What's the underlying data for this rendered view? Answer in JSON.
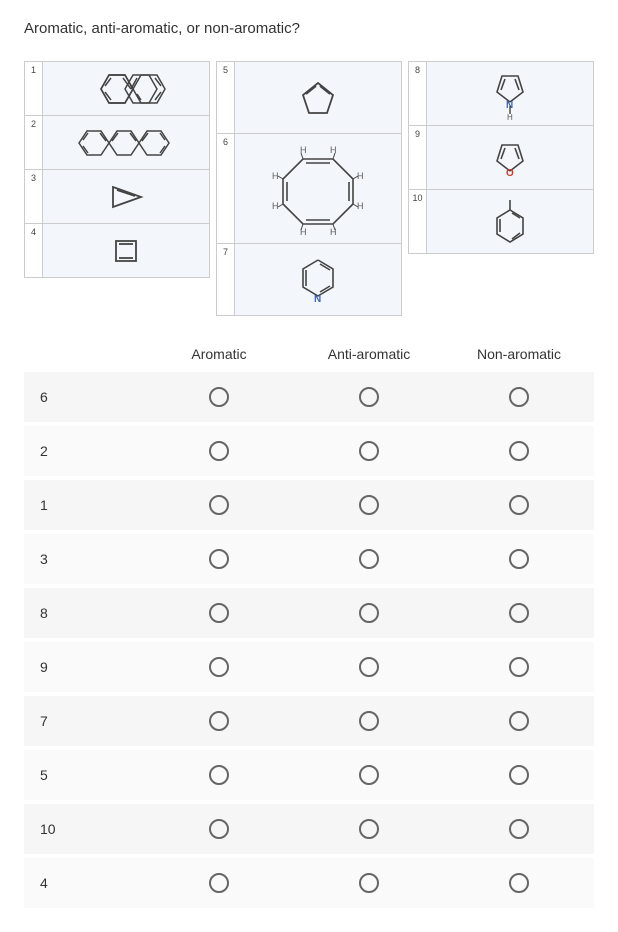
{
  "title": "Aromatic, anti-aromatic, or non-aromatic?",
  "columns": {
    "headers": [
      "Aromatic",
      "Anti-aromatic",
      "Non-aromatic"
    ]
  },
  "diagrams": {
    "col1": [
      {
        "num": "1",
        "type": "naphthalene"
      },
      {
        "num": "2",
        "type": "anthracene"
      },
      {
        "num": "3",
        "type": "triangle"
      },
      {
        "num": "4",
        "type": "square"
      }
    ],
    "col2": [
      {
        "num": "5",
        "type": "cyclopentadiene"
      },
      {
        "num": "6",
        "type": "cyclooctatetraene_h"
      },
      {
        "num": "7",
        "type": "pyridine"
      }
    ],
    "col3": [
      {
        "num": "8",
        "type": "pyrrole"
      },
      {
        "num": "9",
        "type": "furan"
      },
      {
        "num": "10",
        "type": "toluene"
      }
    ]
  },
  "rows": [
    "6",
    "2",
    "1",
    "3",
    "8",
    "9",
    "7",
    "5",
    "10",
    "4"
  ],
  "colors": {
    "line": "#444444",
    "n": "#3b63b8",
    "o": "#d13a2a",
    "h_label": "#5a5a5a"
  }
}
